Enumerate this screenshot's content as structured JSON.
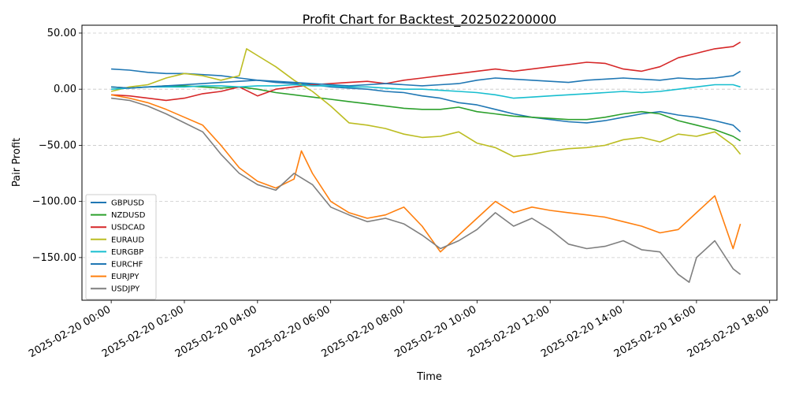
{
  "chart_data": {
    "type": "line",
    "title": "Profit Chart for Backtest_202502200000",
    "xlabel": "Time",
    "ylabel": "Pair Profit",
    "x_ticks": [
      "2025-02-20 00:00",
      "2025-02-20 02:00",
      "2025-02-20 04:00",
      "2025-02-20 06:00",
      "2025-02-20 08:00",
      "2025-02-20 10:00",
      "2025-02-20 12:00",
      "2025-02-20 14:00",
      "2025-02-20 16:00",
      "2025-02-20 18:00"
    ],
    "x_tick_hours": [
      0,
      2,
      4,
      6,
      8,
      10,
      12,
      14,
      16,
      18
    ],
    "xlim_hours": [
      -0.8,
      18.2
    ],
    "y_ticks": [
      50,
      0,
      -50,
      -100,
      -150
    ],
    "y_tick_labels": [
      "50.00",
      "0.00",
      "−50.00",
      "−100.00",
      "−150.00"
    ],
    "ylim": [
      -188,
      57
    ],
    "grid": "y-dashed",
    "legend_position": "lower-left",
    "series": [
      {
        "name": "GBPUSD",
        "color": "#1f77b4",
        "points": [
          [
            0.0,
            18
          ],
          [
            0.5,
            17
          ],
          [
            1.0,
            15
          ],
          [
            1.5,
            14
          ],
          [
            2.0,
            14
          ],
          [
            2.5,
            13
          ],
          [
            3.0,
            12
          ],
          [
            3.5,
            10
          ],
          [
            4.0,
            8
          ],
          [
            4.5,
            6
          ],
          [
            5.0,
            5
          ],
          [
            5.5,
            4
          ],
          [
            6.0,
            2
          ],
          [
            6.5,
            1
          ],
          [
            7.0,
            0
          ],
          [
            7.5,
            -2
          ],
          [
            8.0,
            -3
          ],
          [
            8.5,
            -6
          ],
          [
            9.0,
            -8
          ],
          [
            9.5,
            -12
          ],
          [
            10.0,
            -14
          ],
          [
            10.5,
            -18
          ],
          [
            11.0,
            -22
          ],
          [
            11.5,
            -25
          ],
          [
            12.0,
            -27
          ],
          [
            12.5,
            -29
          ],
          [
            13.0,
            -30
          ],
          [
            13.5,
            -28
          ],
          [
            14.0,
            -25
          ],
          [
            14.5,
            -22
          ],
          [
            15.0,
            -20
          ],
          [
            15.5,
            -23
          ],
          [
            16.0,
            -25
          ],
          [
            16.5,
            -28
          ],
          [
            17.0,
            -32
          ],
          [
            17.2,
            -38
          ]
        ]
      },
      {
        "name": "NZDUSD",
        "color": "#2ca02c",
        "points": [
          [
            0.0,
            2
          ],
          [
            0.5,
            1
          ],
          [
            1.0,
            2
          ],
          [
            1.5,
            3
          ],
          [
            2.0,
            3
          ],
          [
            2.5,
            2
          ],
          [
            3.0,
            1
          ],
          [
            3.5,
            2
          ],
          [
            4.0,
            0
          ],
          [
            4.5,
            -3
          ],
          [
            5.0,
            -5
          ],
          [
            5.5,
            -7
          ],
          [
            6.0,
            -9
          ],
          [
            6.5,
            -11
          ],
          [
            7.0,
            -13
          ],
          [
            7.5,
            -15
          ],
          [
            8.0,
            -17
          ],
          [
            8.5,
            -18
          ],
          [
            9.0,
            -18
          ],
          [
            9.5,
            -16
          ],
          [
            10.0,
            -20
          ],
          [
            10.5,
            -22
          ],
          [
            11.0,
            -24
          ],
          [
            11.5,
            -25
          ],
          [
            12.0,
            -26
          ],
          [
            12.5,
            -27
          ],
          [
            13.0,
            -27
          ],
          [
            13.5,
            -25
          ],
          [
            14.0,
            -22
          ],
          [
            14.5,
            -20
          ],
          [
            15.0,
            -22
          ],
          [
            15.5,
            -28
          ],
          [
            16.0,
            -32
          ],
          [
            16.5,
            -36
          ],
          [
            17.0,
            -42
          ],
          [
            17.2,
            -46
          ]
        ]
      },
      {
        "name": "USDCAD",
        "color": "#d62728",
        "points": [
          [
            0.0,
            -5
          ],
          [
            0.5,
            -6
          ],
          [
            1.0,
            -8
          ],
          [
            1.5,
            -10
          ],
          [
            2.0,
            -8
          ],
          [
            2.5,
            -4
          ],
          [
            3.0,
            -2
          ],
          [
            3.5,
            2
          ],
          [
            4.0,
            -6
          ],
          [
            4.5,
            0
          ],
          [
            5.0,
            2
          ],
          [
            5.5,
            4
          ],
          [
            6.0,
            5
          ],
          [
            6.5,
            6
          ],
          [
            7.0,
            7
          ],
          [
            7.5,
            5
          ],
          [
            8.0,
            8
          ],
          [
            8.5,
            10
          ],
          [
            9.0,
            12
          ],
          [
            9.5,
            14
          ],
          [
            10.0,
            16
          ],
          [
            10.5,
            18
          ],
          [
            11.0,
            16
          ],
          [
            11.5,
            18
          ],
          [
            12.0,
            20
          ],
          [
            12.5,
            22
          ],
          [
            13.0,
            24
          ],
          [
            13.5,
            23
          ],
          [
            14.0,
            18
          ],
          [
            14.5,
            16
          ],
          [
            15.0,
            20
          ],
          [
            15.5,
            28
          ],
          [
            16.0,
            32
          ],
          [
            16.5,
            36
          ],
          [
            17.0,
            38
          ],
          [
            17.2,
            42
          ]
        ]
      },
      {
        "name": "EURAUD",
        "color": "#bcbd22",
        "points": [
          [
            0.0,
            -2
          ],
          [
            0.5,
            2
          ],
          [
            1.0,
            4
          ],
          [
            1.5,
            10
          ],
          [
            2.0,
            14
          ],
          [
            2.5,
            12
          ],
          [
            3.0,
            8
          ],
          [
            3.5,
            12
          ],
          [
            3.7,
            36
          ],
          [
            4.0,
            30
          ],
          [
            4.5,
            20
          ],
          [
            5.0,
            8
          ],
          [
            5.5,
            -2
          ],
          [
            6.0,
            -15
          ],
          [
            6.5,
            -30
          ],
          [
            7.0,
            -32
          ],
          [
            7.5,
            -35
          ],
          [
            8.0,
            -40
          ],
          [
            8.5,
            -43
          ],
          [
            9.0,
            -42
          ],
          [
            9.5,
            -38
          ],
          [
            10.0,
            -48
          ],
          [
            10.5,
            -52
          ],
          [
            11.0,
            -60
          ],
          [
            11.5,
            -58
          ],
          [
            12.0,
            -55
          ],
          [
            12.5,
            -53
          ],
          [
            13.0,
            -52
          ],
          [
            13.5,
            -50
          ],
          [
            14.0,
            -45
          ],
          [
            14.5,
            -43
          ],
          [
            15.0,
            -47
          ],
          [
            15.5,
            -40
          ],
          [
            16.0,
            -42
          ],
          [
            16.5,
            -38
          ],
          [
            17.0,
            -50
          ],
          [
            17.2,
            -58
          ]
        ]
      },
      {
        "name": "EURGBP",
        "color": "#17becf",
        "points": [
          [
            0.0,
            0
          ],
          [
            0.5,
            1
          ],
          [
            1.0,
            2
          ],
          [
            1.5,
            2
          ],
          [
            2.0,
            2
          ],
          [
            2.5,
            3
          ],
          [
            3.0,
            3
          ],
          [
            3.5,
            2
          ],
          [
            4.0,
            3
          ],
          [
            4.5,
            3
          ],
          [
            5.0,
            4
          ],
          [
            5.5,
            3
          ],
          [
            6.0,
            3
          ],
          [
            6.5,
            2
          ],
          [
            7.0,
            2
          ],
          [
            7.5,
            1
          ],
          [
            8.0,
            0
          ],
          [
            8.5,
            0
          ],
          [
            9.0,
            -1
          ],
          [
            9.5,
            -2
          ],
          [
            10.0,
            -3
          ],
          [
            10.5,
            -5
          ],
          [
            11.0,
            -8
          ],
          [
            11.5,
            -7
          ],
          [
            12.0,
            -6
          ],
          [
            12.5,
            -5
          ],
          [
            13.0,
            -4
          ],
          [
            13.5,
            -3
          ],
          [
            14.0,
            -2
          ],
          [
            14.5,
            -3
          ],
          [
            15.0,
            -2
          ],
          [
            15.5,
            0
          ],
          [
            16.0,
            2
          ],
          [
            16.5,
            4
          ],
          [
            17.0,
            4
          ],
          [
            17.2,
            2
          ]
        ]
      },
      {
        "name": "EURCHF",
        "color": "#1f77b4",
        "points": [
          [
            0.0,
            2
          ],
          [
            0.5,
            1
          ],
          [
            1.0,
            2
          ],
          [
            1.5,
            3
          ],
          [
            2.0,
            4
          ],
          [
            2.5,
            5
          ],
          [
            3.0,
            6
          ],
          [
            3.5,
            7
          ],
          [
            4.0,
            8
          ],
          [
            4.5,
            7
          ],
          [
            5.0,
            6
          ],
          [
            5.5,
            5
          ],
          [
            6.0,
            4
          ],
          [
            6.5,
            3
          ],
          [
            7.0,
            4
          ],
          [
            7.5,
            5
          ],
          [
            8.0,
            4
          ],
          [
            8.5,
            3
          ],
          [
            9.0,
            4
          ],
          [
            9.5,
            5
          ],
          [
            10.0,
            8
          ],
          [
            10.5,
            10
          ],
          [
            11.0,
            9
          ],
          [
            11.5,
            8
          ],
          [
            12.0,
            7
          ],
          [
            12.5,
            6
          ],
          [
            13.0,
            8
          ],
          [
            13.5,
            9
          ],
          [
            14.0,
            10
          ],
          [
            14.5,
            9
          ],
          [
            15.0,
            8
          ],
          [
            15.5,
            10
          ],
          [
            16.0,
            9
          ],
          [
            16.5,
            10
          ],
          [
            17.0,
            12
          ],
          [
            17.2,
            16
          ]
        ]
      },
      {
        "name": "EURJPY",
        "color": "#ff7f0e",
        "points": [
          [
            0.0,
            -5
          ],
          [
            0.5,
            -8
          ],
          [
            1.0,
            -12
          ],
          [
            1.5,
            -18
          ],
          [
            2.0,
            -25
          ],
          [
            2.5,
            -32
          ],
          [
            3.0,
            -50
          ],
          [
            3.5,
            -70
          ],
          [
            4.0,
            -82
          ],
          [
            4.5,
            -88
          ],
          [
            5.0,
            -80
          ],
          [
            5.2,
            -55
          ],
          [
            5.5,
            -75
          ],
          [
            6.0,
            -100
          ],
          [
            6.5,
            -110
          ],
          [
            7.0,
            -115
          ],
          [
            7.5,
            -112
          ],
          [
            8.0,
            -105
          ],
          [
            8.5,
            -122
          ],
          [
            9.0,
            -145
          ],
          [
            9.5,
            -130
          ],
          [
            10.0,
            -115
          ],
          [
            10.5,
            -100
          ],
          [
            11.0,
            -110
          ],
          [
            11.5,
            -105
          ],
          [
            12.0,
            -108
          ],
          [
            12.5,
            -110
          ],
          [
            13.0,
            -112
          ],
          [
            13.5,
            -114
          ],
          [
            14.0,
            -118
          ],
          [
            14.5,
            -122
          ],
          [
            15.0,
            -128
          ],
          [
            15.5,
            -125
          ],
          [
            16.0,
            -110
          ],
          [
            16.5,
            -95
          ],
          [
            17.0,
            -142
          ],
          [
            17.2,
            -120
          ]
        ]
      },
      {
        "name": "USDJPY",
        "color": "#7f7f7f",
        "points": [
          [
            0.0,
            -8
          ],
          [
            0.5,
            -10
          ],
          [
            1.0,
            -15
          ],
          [
            1.5,
            -22
          ],
          [
            2.0,
            -30
          ],
          [
            2.5,
            -38
          ],
          [
            3.0,
            -58
          ],
          [
            3.5,
            -75
          ],
          [
            4.0,
            -85
          ],
          [
            4.5,
            -90
          ],
          [
            5.0,
            -75
          ],
          [
            5.5,
            -85
          ],
          [
            6.0,
            -105
          ],
          [
            6.5,
            -112
          ],
          [
            7.0,
            -118
          ],
          [
            7.5,
            -115
          ],
          [
            8.0,
            -120
          ],
          [
            8.5,
            -130
          ],
          [
            9.0,
            -142
          ],
          [
            9.5,
            -135
          ],
          [
            10.0,
            -125
          ],
          [
            10.5,
            -110
          ],
          [
            11.0,
            -122
          ],
          [
            11.5,
            -115
          ],
          [
            12.0,
            -125
          ],
          [
            12.5,
            -138
          ],
          [
            13.0,
            -142
          ],
          [
            13.5,
            -140
          ],
          [
            14.0,
            -135
          ],
          [
            14.5,
            -143
          ],
          [
            15.0,
            -145
          ],
          [
            15.5,
            -165
          ],
          [
            15.8,
            -172
          ],
          [
            16.0,
            -150
          ],
          [
            16.5,
            -135
          ],
          [
            17.0,
            -160
          ],
          [
            17.2,
            -165
          ]
        ]
      }
    ]
  }
}
